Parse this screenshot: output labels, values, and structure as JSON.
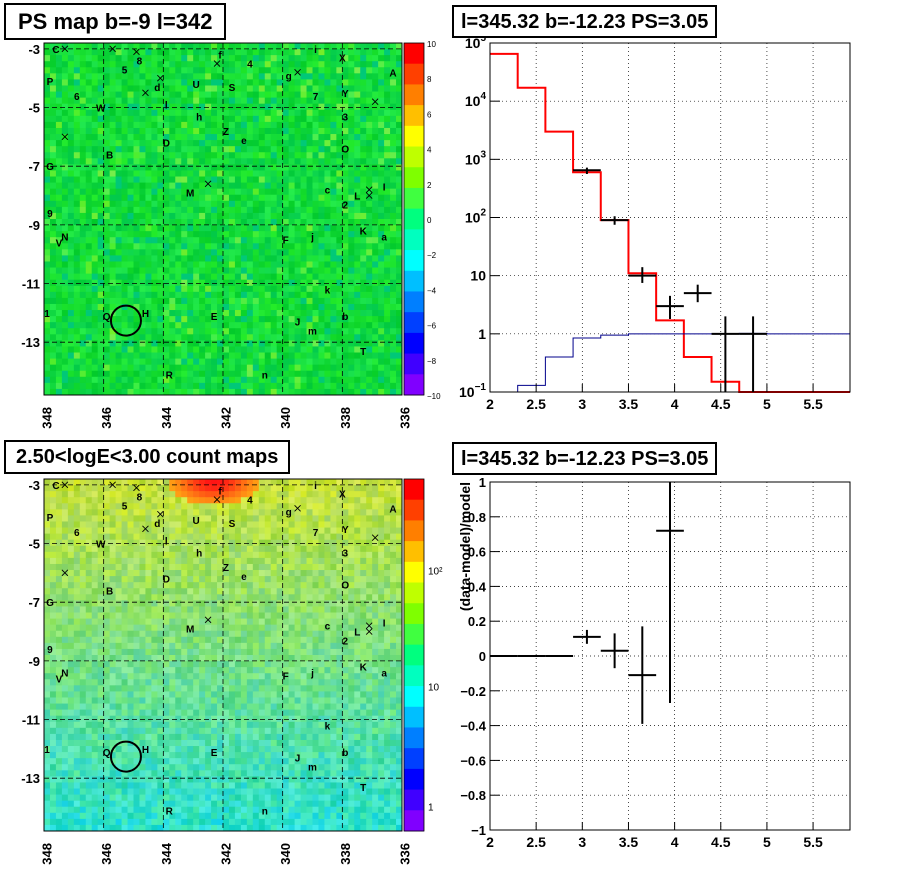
{
  "panels": {
    "tl_title": "PS map b=-9 l=342",
    "tr_title": "l=345.32 b=-12.23 PS=3.05",
    "bl_title": "2.50<logE<3.00 count maps",
    "br_title": "l=345.32 b=-12.23 PS=3.05"
  },
  "maps": {
    "x_ticks": [
      "348",
      "346",
      "344",
      "342",
      "340",
      "338",
      "336"
    ],
    "y_ticks": [
      "-3",
      "-5",
      "-7",
      "-9",
      "-11",
      "-13"
    ],
    "top_palette_ticks": [
      "10",
      "8",
      "6",
      "4",
      "2",
      "0",
      "−2",
      "−4",
      "−6",
      "−8",
      "−10"
    ],
    "bottom_palette_ticks": [
      "10²",
      "10",
      "1"
    ],
    "source_labels": [
      {
        "t": "C",
        "l": 347.6,
        "b": -3.0
      },
      {
        "t": "f",
        "l": 342.1,
        "b": -3.2
      },
      {
        "t": "i",
        "l": 338.9,
        "b": -3.0
      },
      {
        "t": "X",
        "l": 338.0,
        "b": -3.3
      },
      {
        "t": "4",
        "l": 341.1,
        "b": -3.5
      },
      {
        "t": "8",
        "l": 344.8,
        "b": -3.4
      },
      {
        "t": "5",
        "l": 345.3,
        "b": -3.7
      },
      {
        "t": "g",
        "l": 339.8,
        "b": -3.9
      },
      {
        "t": "A",
        "l": 336.3,
        "b": -3.8
      },
      {
        "t": "P",
        "l": 347.8,
        "b": -4.1
      },
      {
        "t": "d",
        "l": 344.2,
        "b": -4.3
      },
      {
        "t": "U",
        "l": 342.9,
        "b": -4.2
      },
      {
        "t": "S",
        "l": 341.7,
        "b": -4.3
      },
      {
        "t": "7",
        "l": 338.9,
        "b": -4.6
      },
      {
        "t": "Y",
        "l": 337.9,
        "b": -4.5
      },
      {
        "t": "6",
        "l": 346.9,
        "b": -4.6
      },
      {
        "t": "W",
        "l": 346.1,
        "b": -5.0
      },
      {
        "t": "l",
        "l": 343.9,
        "b": -4.9
      },
      {
        "t": "h",
        "l": 342.8,
        "b": -5.3
      },
      {
        "t": "3",
        "l": 337.9,
        "b": -5.3
      },
      {
        "t": "Z",
        "l": 341.9,
        "b": -5.8
      },
      {
        "t": "D",
        "l": 343.9,
        "b": -6.2
      },
      {
        "t": "e",
        "l": 341.3,
        "b": -6.1
      },
      {
        "t": "O",
        "l": 337.9,
        "b": -6.4
      },
      {
        "t": "B",
        "l": 345.8,
        "b": -6.6
      },
      {
        "t": "G",
        "l": 347.8,
        "b": -7.0
      },
      {
        "t": "M",
        "l": 343.1,
        "b": -7.9
      },
      {
        "t": "c",
        "l": 338.5,
        "b": -7.8
      },
      {
        "t": "L",
        "l": 337.5,
        "b": -8.0
      },
      {
        "t": "I",
        "l": 336.6,
        "b": -7.7
      },
      {
        "t": "2",
        "l": 337.9,
        "b": -8.3
      },
      {
        "t": "9",
        "l": 347.8,
        "b": -8.6
      },
      {
        "t": "N",
        "l": 347.3,
        "b": -9.4
      },
      {
        "t": "V",
        "l": 347.5,
        "b": -9.6
      },
      {
        "t": "j",
        "l": 339.0,
        "b": -9.4
      },
      {
        "t": "F",
        "l": 339.9,
        "b": -9.5
      },
      {
        "t": "K",
        "l": 337.3,
        "b": -9.2
      },
      {
        "t": "a",
        "l": 336.6,
        "b": -9.4
      },
      {
        "t": "k",
        "l": 338.5,
        "b": -11.2
      },
      {
        "t": "H",
        "l": 344.6,
        "b": -12.0
      },
      {
        "t": "E",
        "l": 342.3,
        "b": -12.1
      },
      {
        "t": "b",
        "l": 337.9,
        "b": -12.1
      },
      {
        "t": "Q",
        "l": 345.9,
        "b": -12.1
      },
      {
        "t": "J",
        "l": 339.5,
        "b": -12.3
      },
      {
        "t": "m",
        "l": 339.0,
        "b": -12.6
      },
      {
        "t": "T",
        "l": 337.3,
        "b": -13.3
      },
      {
        "t": "R",
        "l": 343.8,
        "b": -14.1
      },
      {
        "t": "n",
        "l": 340.6,
        "b": -14.1
      },
      {
        "t": "1",
        "l": 347.9,
        "b": -12.0
      }
    ]
  },
  "chart_data": [
    {
      "type": "line",
      "panel": "top-right",
      "title": "l=345.32 b=-12.23 PS=3.05",
      "xlim": [
        2,
        5.9
      ],
      "ylim": [
        0.1,
        100000
      ],
      "yscale": "log",
      "grid": true,
      "x_ticks": [
        "2",
        "2.5",
        "3",
        "3.5",
        "4",
        "4.5",
        "5",
        "5.5"
      ],
      "y_ticks": [
        {
          "v": 100000,
          "base": "10",
          "exp": "5"
        },
        {
          "v": 10000,
          "base": "10",
          "exp": "4"
        },
        {
          "v": 1000,
          "base": "10",
          "exp": "3"
        },
        {
          "v": 100,
          "base": "10",
          "exp": "2"
        },
        {
          "v": 10,
          "base": "10",
          "exp": ""
        },
        {
          "v": 1,
          "base": "1",
          "exp": ""
        },
        {
          "v": 0.1,
          "base": "10",
          "exp": "−1"
        }
      ],
      "series": [
        {
          "color": "#ff0000",
          "kind": "step",
          "edges": [
            2.0,
            2.3,
            2.6,
            2.9,
            3.2,
            3.5,
            3.8,
            4.1,
            4.4,
            4.7,
            5.0,
            5.3,
            5.9
          ],
          "values": [
            65000,
            17000,
            3000,
            600,
            90,
            11,
            1.7,
            0.4,
            0.15,
            0.1,
            0.1,
            0.1
          ]
        },
        {
          "color": "#00008b",
          "kind": "step",
          "edges": [
            2.0,
            2.3,
            2.6,
            2.9,
            3.2,
            3.5,
            3.8,
            4.1,
            4.4,
            4.7,
            5.0,
            5.3,
            5.9
          ],
          "values": [
            0.1,
            0.13,
            0.4,
            0.85,
            0.95,
            1.0,
            1.0,
            1.0,
            1.0,
            1.02,
            1.0,
            1.0
          ]
        },
        {
          "color": "#000000",
          "kind": "points",
          "x": [
            3.05,
            3.35,
            3.65,
            3.95,
            4.25,
            4.55,
            4.85
          ],
          "y": [
            650,
            90,
            10,
            3.0,
            5.0,
            1.0,
            1.0
          ],
          "xerr": 0.15,
          "ylo": [
            560,
            75,
            7.5,
            1.8,
            3.5,
            0.1,
            0.1
          ],
          "yhi": [
            720,
            105,
            14,
            4.5,
            7.0,
            2.0,
            2.0
          ]
        }
      ]
    },
    {
      "type": "scatter",
      "panel": "bottom-right",
      "title": "l=345.32 b=-12.23 PS=3.05",
      "ylabel": "(data-model)/model",
      "xlim": [
        2,
        5.9
      ],
      "ylim": [
        -1,
        1
      ],
      "grid": true,
      "x_ticks": [
        "2",
        "2.5",
        "3",
        "3.5",
        "4",
        "4.5",
        "5",
        "5.5"
      ],
      "y_ticks": [
        "1",
        "0.8",
        "0.6",
        "0.4",
        "0.2",
        "0",
        "−0.2",
        "−0.4",
        "−0.6",
        "−0.8",
        "−1"
      ],
      "series": [
        {
          "color": "#000000",
          "kind": "points",
          "x": [
            2.15,
            2.45,
            2.75,
            3.05,
            3.35,
            3.65,
            3.95
          ],
          "y": [
            0.0,
            0.0,
            0.0,
            0.11,
            0.03,
            -0.11,
            0.72
          ],
          "xerr": 0.15,
          "ylo": [
            -0.005,
            -0.005,
            -0.005,
            0.07,
            -0.07,
            -0.39,
            -0.27
          ],
          "yhi": [
            0.005,
            0.005,
            0.005,
            0.15,
            0.13,
            0.17,
            1.0
          ]
        }
      ]
    }
  ]
}
